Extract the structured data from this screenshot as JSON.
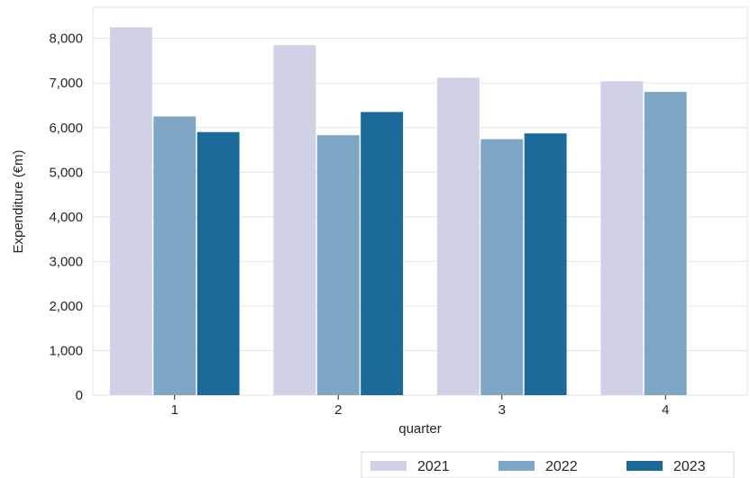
{
  "chart_data": {
    "type": "bar",
    "xlabel": "quarter",
    "ylabel": "Expenditure  (€m)",
    "categories": [
      "1",
      "2",
      "3",
      "4"
    ],
    "series": [
      {
        "name": "2021",
        "color": "#d0d1e6",
        "values": [
          8250,
          7850,
          7120,
          7040
        ]
      },
      {
        "name": "2022",
        "color": "#7ea6c6",
        "values": [
          6250,
          5830,
          5740,
          6800
        ]
      },
      {
        "name": "2023",
        "color": "#1b6a9a",
        "values": [
          5900,
          6350,
          5870,
          null
        ]
      }
    ],
    "ylim": [
      0,
      8700
    ],
    "yticks": [
      0,
      1000,
      2000,
      3000,
      4000,
      5000,
      6000,
      7000,
      8000
    ],
    "ytick_labels": [
      "0",
      "1,000",
      "2,000",
      "3,000",
      "4,000",
      "5,000",
      "6,000",
      "7,000",
      "8,000"
    ],
    "grid": true,
    "legend_position": "bottom-right",
    "background": "#ffffff",
    "grid_color": "#e4e4e4"
  }
}
